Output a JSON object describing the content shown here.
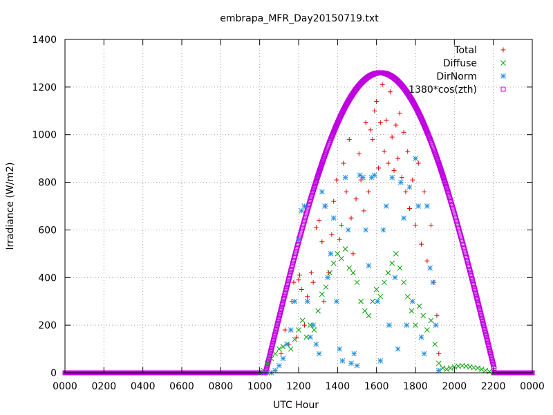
{
  "chart_data": {
    "type": "scatter",
    "title": "embrapa_MFR_Day20150719.txt",
    "xlabel": "UTC Hour",
    "ylabel": "Irradiance (W/m2)",
    "xlim": [
      0,
      2400
    ],
    "ylim": [
      0,
      1400
    ],
    "x_tick_labels": [
      "0000",
      "0200",
      "0400",
      "0600",
      "0800",
      "1000",
      "1200",
      "1400",
      "1600",
      "1800",
      "2000",
      "2200",
      "0000"
    ],
    "y_ticks": [
      0,
      200,
      400,
      600,
      800,
      1000,
      1200,
      1400
    ],
    "grid": true,
    "legend_position": "top-right",
    "series": [
      {
        "name": "Total",
        "marker": "plus",
        "color": "#e00000",
        "x": [
          1040,
          1110,
          1130,
          1150,
          1165,
          1175,
          1190,
          1200,
          1205,
          1215,
          1230,
          1245,
          1265,
          1275,
          1290,
          1305,
          1320,
          1330,
          1340,
          1355,
          1370,
          1380,
          1395,
          1410,
          1420,
          1430,
          1445,
          1460,
          1470,
          1480,
          1495,
          1510,
          1520,
          1535,
          1545,
          1560,
          1570,
          1580,
          1590,
          1600,
          1610,
          1620,
          1630,
          1640,
          1650,
          1660,
          1670,
          1680,
          1690,
          1700,
          1710,
          1720,
          1730,
          1740,
          1750,
          1760,
          1770,
          1785,
          1800,
          1815,
          1830,
          1845,
          1860,
          1880,
          1895,
          1910,
          1920
        ],
        "y": [
          0,
          80,
          180,
          120,
          300,
          380,
          150,
          390,
          410,
          350,
          200,
          320,
          420,
          380,
          610,
          640,
          550,
          300,
          700,
          420,
          580,
          720,
          810,
          560,
          620,
          880,
          760,
          980,
          650,
          500,
          730,
          920,
          810,
          680,
          1050,
          760,
          1020,
          980,
          1100,
          1140,
          860,
          1050,
          1210,
          930,
          1060,
          880,
          1180,
          990,
          850,
          1040,
          900,
          1090,
          820,
          1010,
          760,
          930,
          690,
          810,
          620,
          880,
          540,
          760,
          470,
          620,
          380,
          240,
          80
        ]
      },
      {
        "name": "Diffuse",
        "marker": "cross",
        "color": "#00a000",
        "x": [
          1000,
          1020,
          1040,
          1060,
          1080,
          1100,
          1120,
          1140,
          1160,
          1180,
          1200,
          1220,
          1240,
          1260,
          1280,
          1300,
          1320,
          1340,
          1360,
          1380,
          1400,
          1420,
          1440,
          1460,
          1480,
          1500,
          1520,
          1540,
          1560,
          1580,
          1600,
          1620,
          1640,
          1660,
          1680,
          1700,
          1720,
          1740,
          1760,
          1780,
          1800,
          1820,
          1840,
          1860,
          1880,
          1900,
          1920,
          1940,
          1960,
          1980,
          2000,
          2020,
          2040,
          2060,
          2080,
          2100,
          2120,
          2140,
          2160,
          2180,
          2200
        ],
        "y": [
          0,
          10,
          40,
          60,
          80,
          100,
          110,
          120,
          100,
          140,
          180,
          220,
          150,
          200,
          180,
          260,
          330,
          360,
          420,
          460,
          500,
          480,
          520,
          440,
          420,
          380,
          300,
          260,
          240,
          300,
          350,
          320,
          380,
          420,
          460,
          500,
          440,
          380,
          320,
          260,
          200,
          280,
          240,
          180,
          220,
          120,
          40,
          20,
          15,
          20,
          25,
          28,
          30,
          28,
          25,
          22,
          20,
          15,
          10,
          5,
          0
        ]
      },
      {
        "name": "DirNorm",
        "marker": "star",
        "color": "#2090e0",
        "x": [
          1020,
          1040,
          1060,
          1080,
          1100,
          1120,
          1140,
          1160,
          1180,
          1200,
          1215,
          1230,
          1245,
          1260,
          1275,
          1290,
          1305,
          1320,
          1335,
          1350,
          1365,
          1380,
          1395,
          1410,
          1425,
          1440,
          1455,
          1470,
          1485,
          1500,
          1515,
          1530,
          1545,
          1560,
          1575,
          1590,
          1605,
          1620,
          1635,
          1650,
          1665,
          1680,
          1695,
          1710,
          1725,
          1740,
          1755,
          1770,
          1785,
          1800,
          1815,
          1830,
          1845,
          1860,
          1875,
          1890,
          1905,
          1920
        ],
        "y": [
          0,
          0,
          0,
          10,
          30,
          60,
          120,
          180,
          300,
          560,
          680,
          700,
          300,
          150,
          200,
          120,
          80,
          760,
          700,
          400,
          500,
          650,
          300,
          100,
          50,
          820,
          600,
          40,
          80,
          30,
          830,
          820,
          600,
          450,
          820,
          830,
          300,
          50,
          600,
          700,
          200,
          820,
          400,
          100,
          800,
          650,
          200,
          780,
          300,
          900,
          700,
          150,
          80,
          700,
          440,
          380,
          200,
          10
        ]
      },
      {
        "name": "1380*cos(zth)",
        "marker": "square",
        "color": "#c000e0",
        "peak_y": 1260,
        "peak_x": 1620,
        "start_x": 1025,
        "end_x": 2205
      }
    ]
  }
}
